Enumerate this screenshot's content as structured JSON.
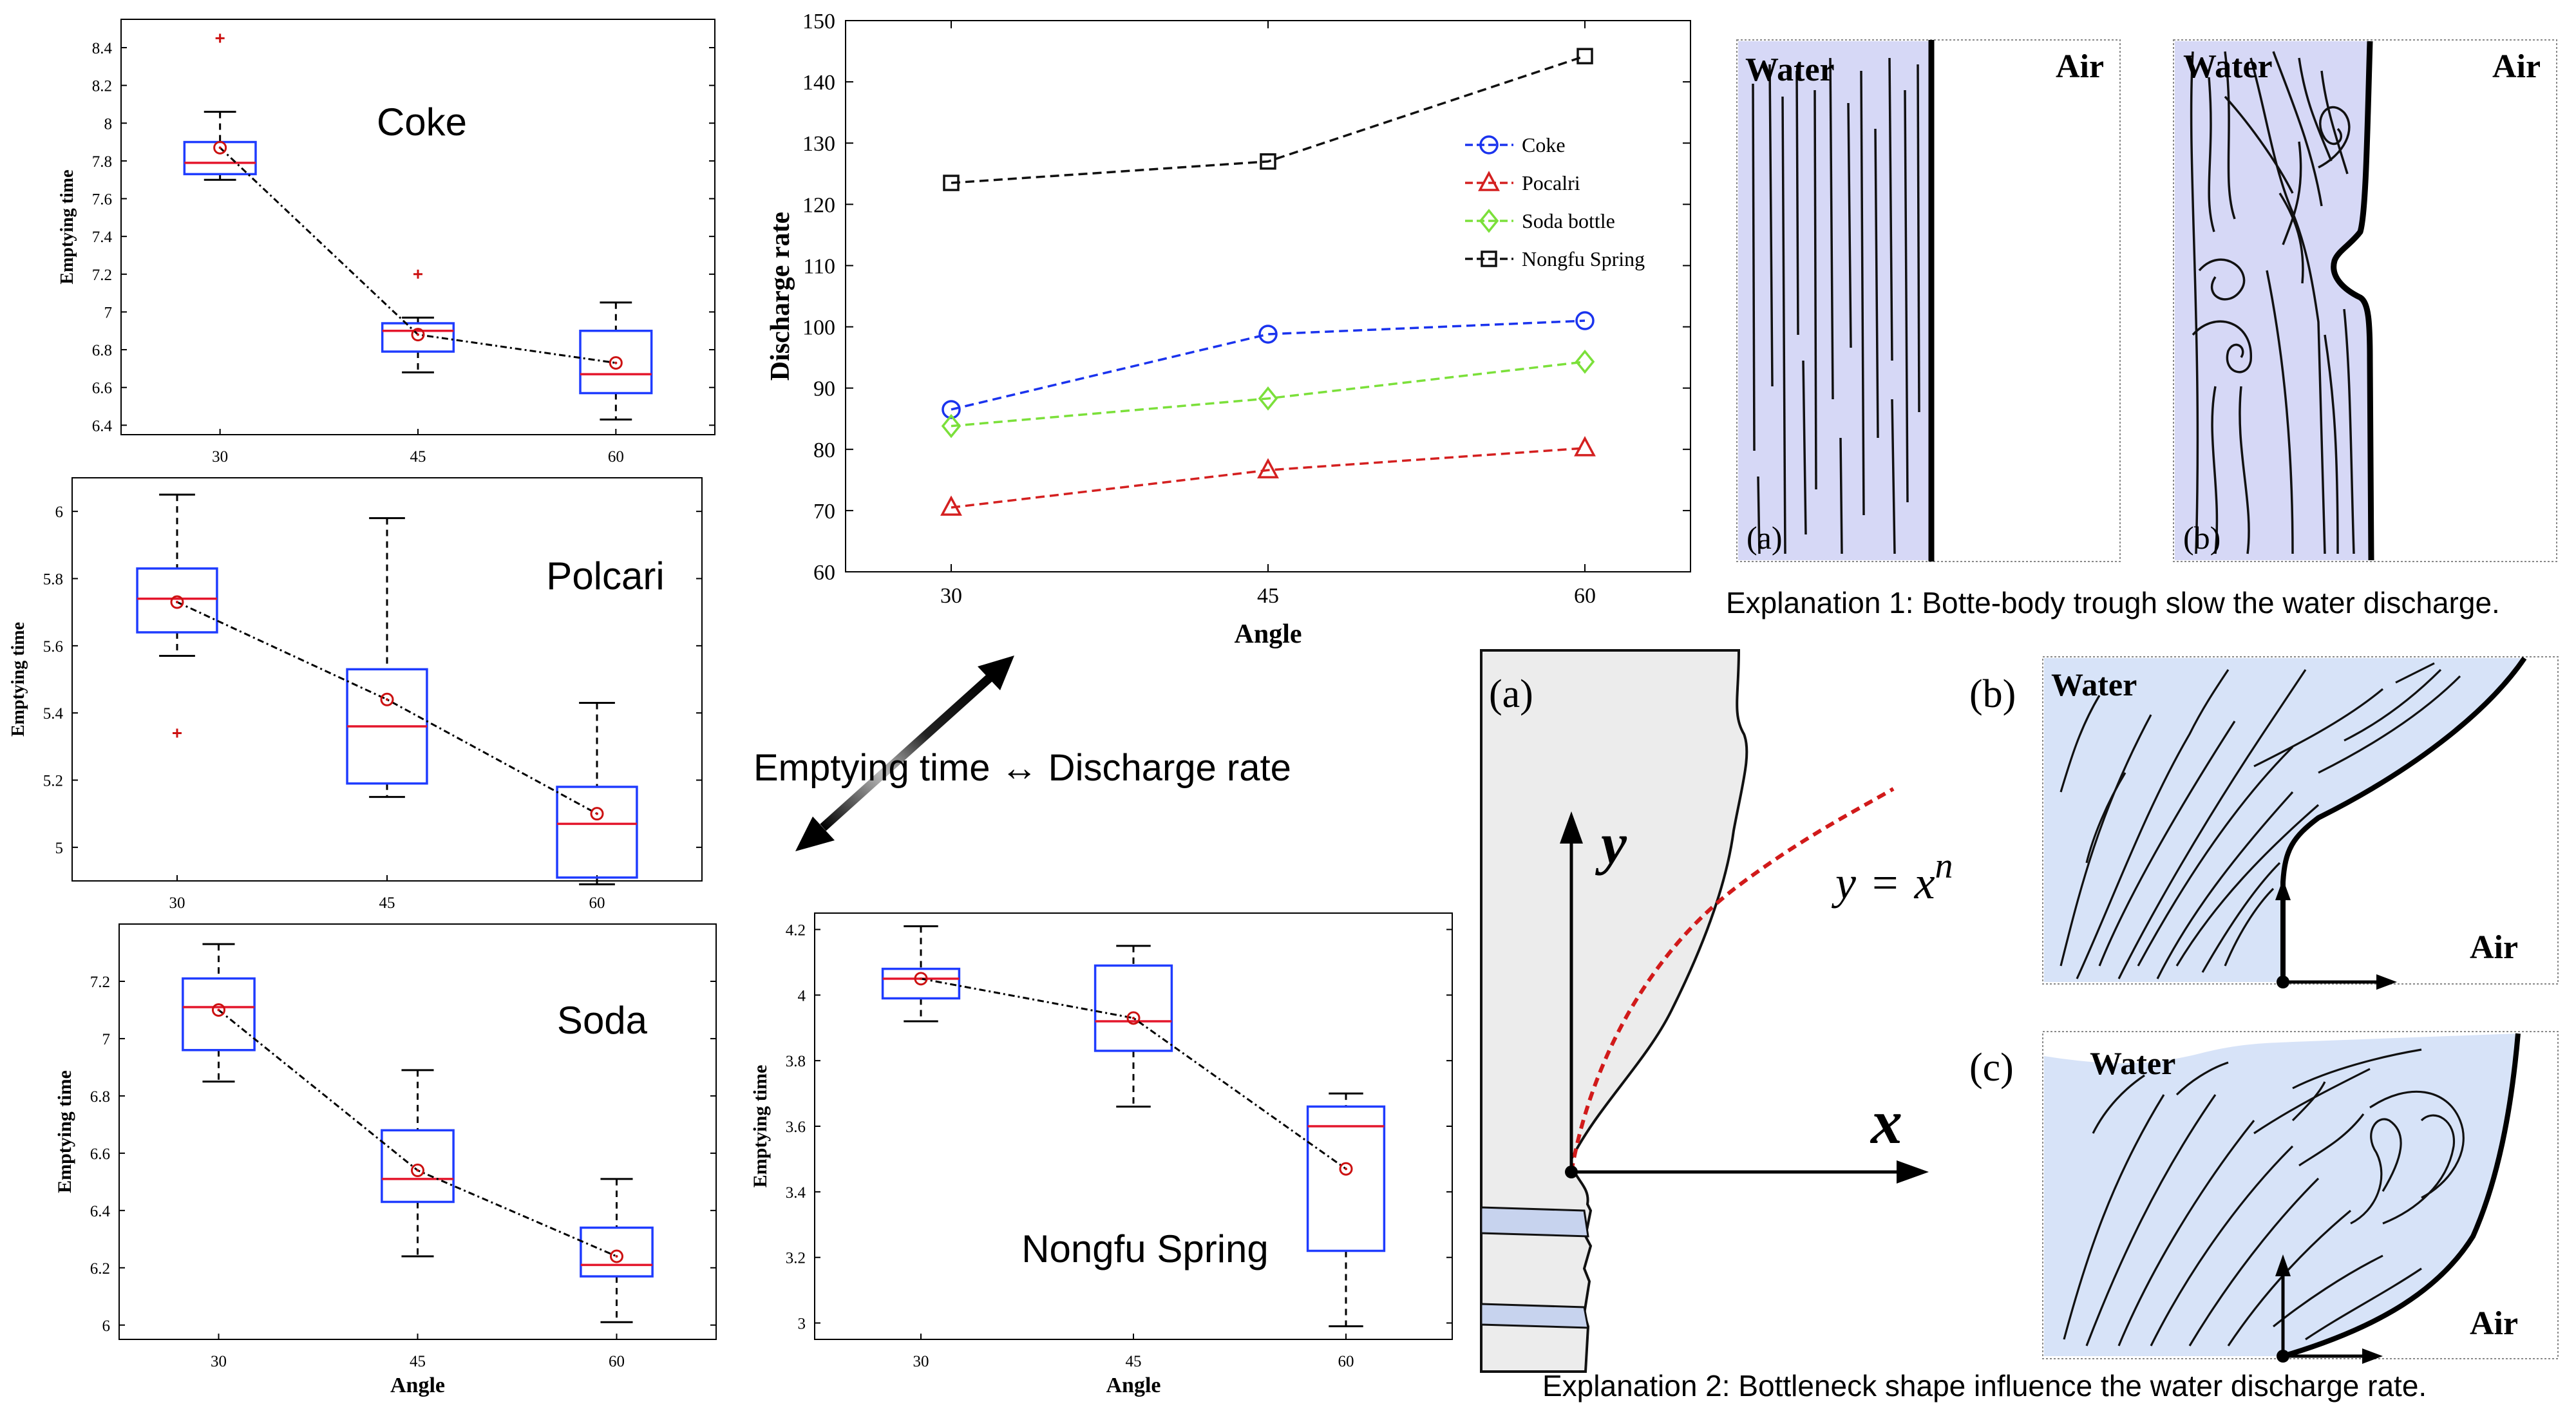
{
  "colors": {
    "box": "#1f3cff",
    "median": "#e4162c",
    "whisker": "#000000",
    "mean_marker": "#cc1111",
    "outlier": "#cc1111",
    "coke": "#1a33ee",
    "pocalri": "#d42020",
    "soda_bottle": "#7be03a",
    "nongfu": "#111111",
    "water_fill": "#d6d8f6",
    "water_fill_2": "#d7e3f8",
    "bottle_gray": "#ececec",
    "curve_red": "#d11a1a"
  },
  "chart_data": [
    {
      "id": "coke",
      "type": "box",
      "title": "Coke",
      "xlabel": "",
      "ylabel": "Emptying time",
      "categories": [
        "30",
        "45",
        "60"
      ],
      "ylim": [
        6.35,
        8.55
      ],
      "yticks": [
        "6.4",
        "6.6",
        "6.8",
        "7",
        "7.2",
        "7.4",
        "7.6",
        "7.8",
        "8",
        "8.2",
        "8.4"
      ],
      "boxes": [
        {
          "whislo": 7.7,
          "q1": 7.73,
          "med": 7.79,
          "q3": 7.9,
          "whishi": 8.06,
          "mean": 7.87,
          "fliers": [
            8.45
          ]
        },
        {
          "whislo": 6.68,
          "q1": 6.79,
          "med": 6.9,
          "q3": 6.94,
          "whishi": 6.97,
          "mean": 6.88,
          "fliers": [
            7.2
          ]
        },
        {
          "whislo": 6.43,
          "q1": 6.57,
          "med": 6.67,
          "q3": 6.9,
          "whishi": 7.05,
          "mean": 6.73,
          "fliers": []
        }
      ]
    },
    {
      "id": "polcari",
      "type": "box",
      "title": "Polcari",
      "xlabel": "",
      "ylabel": "Emptying time",
      "categories": [
        "30",
        "45",
        "60"
      ],
      "ylim": [
        4.9,
        6.1
      ],
      "yticks": [
        "5",
        "5.2",
        "5.4",
        "5.6",
        "5.8",
        "6"
      ],
      "boxes": [
        {
          "whislo": 5.57,
          "q1": 5.64,
          "med": 5.74,
          "q3": 5.83,
          "whishi": 6.05,
          "mean": 5.73,
          "fliers": [
            5.34
          ]
        },
        {
          "whislo": 5.15,
          "q1": 5.19,
          "med": 5.36,
          "q3": 5.53,
          "whishi": 5.98,
          "mean": 5.44,
          "fliers": []
        },
        {
          "whislo": 4.89,
          "q1": 4.91,
          "med": 5.07,
          "q3": 5.18,
          "whishi": 5.43,
          "mean": 5.1,
          "fliers": []
        }
      ]
    },
    {
      "id": "soda",
      "type": "box",
      "title": "Soda",
      "xlabel": "Angle",
      "ylabel": "Emptying time",
      "categories": [
        "30",
        "45",
        "60"
      ],
      "ylim": [
        5.95,
        7.4
      ],
      "yticks": [
        "6",
        "6.2",
        "6.4",
        "6.6",
        "6.8",
        "7",
        "7.2"
      ],
      "boxes": [
        {
          "whislo": 6.85,
          "q1": 6.96,
          "med": 7.11,
          "q3": 7.21,
          "whishi": 7.33,
          "mean": 7.1,
          "fliers": []
        },
        {
          "whislo": 6.24,
          "q1": 6.43,
          "med": 6.51,
          "q3": 6.68,
          "whishi": 6.89,
          "mean": 6.54,
          "fliers": []
        },
        {
          "whislo": 6.01,
          "q1": 6.17,
          "med": 6.21,
          "q3": 6.34,
          "whishi": 6.51,
          "mean": 6.24,
          "fliers": []
        }
      ]
    },
    {
      "id": "nongfu",
      "type": "box",
      "title": "Nongfu Spring",
      "xlabel": "Angle",
      "ylabel": "Emptying time",
      "categories": [
        "30",
        "45",
        "60"
      ],
      "ylim": [
        2.95,
        4.25
      ],
      "yticks": [
        "3",
        "3.2",
        "3.4",
        "3.6",
        "3.8",
        "4",
        "4.2"
      ],
      "boxes": [
        {
          "whislo": 3.92,
          "q1": 3.99,
          "med": 4.05,
          "q3": 4.08,
          "whishi": 4.21,
          "mean": 4.05,
          "fliers": []
        },
        {
          "whislo": 3.66,
          "q1": 3.83,
          "med": 3.92,
          "q3": 4.09,
          "whishi": 4.15,
          "mean": 3.93,
          "fliers": []
        },
        {
          "whislo": 2.99,
          "q1": 3.22,
          "med": 3.6,
          "q3": 3.66,
          "whishi": 3.7,
          "mean": 3.47,
          "fliers": []
        }
      ]
    },
    {
      "id": "discharge",
      "type": "line",
      "xlabel": "Angle",
      "ylabel": "Discharge rate",
      "x": [
        30,
        45,
        60
      ],
      "ylim": [
        60,
        150
      ],
      "yticks": [
        "60",
        "70",
        "80",
        "90",
        "100",
        "110",
        "120",
        "130",
        "140",
        "150"
      ],
      "legend_position": "right",
      "series": [
        {
          "name": "Coke",
          "values": [
            86.5,
            98.8,
            101.0
          ],
          "marker": "circle",
          "color": "#1a33ee"
        },
        {
          "name": "Pocalri",
          "values": [
            70.5,
            76.6,
            80.2
          ],
          "marker": "triangle",
          "color": "#d42020"
        },
        {
          "name": "Soda bottle",
          "values": [
            83.8,
            88.3,
            94.3
          ],
          "marker": "diamond",
          "color": "#7be03a"
        },
        {
          "name": "Nongfu Spring",
          "values": [
            123.5,
            127.0,
            144.2
          ],
          "marker": "square",
          "color": "#111111"
        }
      ]
    }
  ],
  "center_label": "Emptying time ↔ Discharge rate",
  "explanation1": {
    "panel_a": {
      "tag": "(a)",
      "water": "Water",
      "air": "Air"
    },
    "panel_b": {
      "tag": "(b)",
      "water": "Water",
      "air": "Air"
    },
    "caption": "Explanation 1: Botte-body trough slow the water discharge."
  },
  "explanation2": {
    "panel_a": {
      "tag": "(a)",
      "y_axis": "y",
      "x_axis": "x",
      "equation_lhs": "y",
      "equation_eq": "=",
      "equation_base": "x",
      "equation_exp": "n"
    },
    "panel_b": {
      "tag": "(b)",
      "water": "Water",
      "air": "Air"
    },
    "panel_c": {
      "tag": "(c)",
      "water": "Water",
      "air": "Air"
    },
    "caption": "Explanation 2: Bottleneck shape influence the water discharge rate."
  }
}
